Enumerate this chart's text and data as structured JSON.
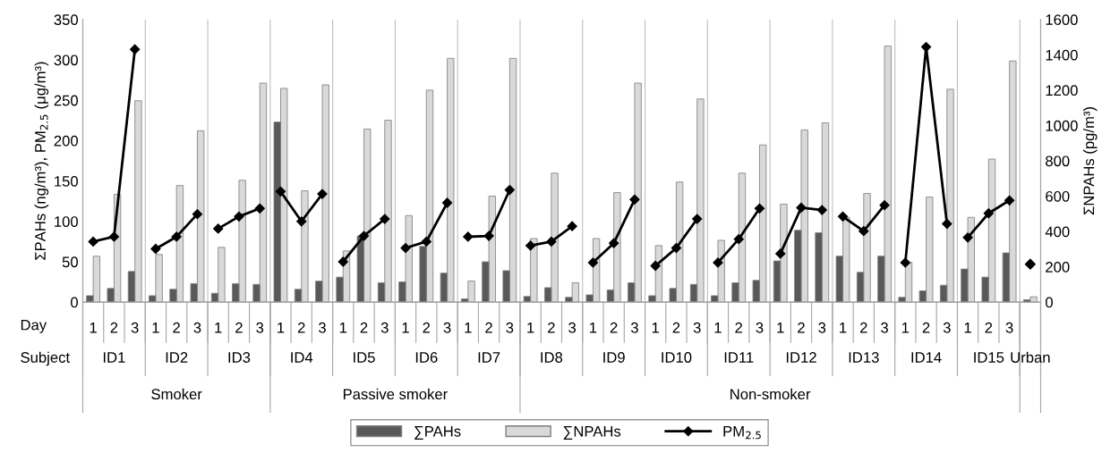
{
  "chart_data": {
    "type": "bar",
    "ylabel": "ΣPAHs (ng/m³), PM$_{2.5}$ (μg/m³)",
    "y2label": "ΣNPAHs (pg/m³)",
    "categories": [
      "1",
      "2",
      "3",
      "1",
      "2",
      "3",
      "1",
      "2",
      "3",
      "1",
      "2",
      "3",
      "1",
      "2",
      "3",
      "1",
      "2",
      "3",
      "1",
      "2",
      "3",
      "1",
      "2",
      "3",
      "1",
      "2",
      "3",
      "1",
      "2",
      "3",
      "1",
      "2",
      "3",
      "1",
      "2",
      "3",
      "1",
      "2",
      "3",
      "1",
      "2",
      "3",
      "1",
      "2",
      "3",
      null
    ],
    "series": [
      {
        "name": "∑PAHs",
        "color": "#595959",
        "values": [
          8,
          17,
          38,
          8,
          16,
          23,
          11,
          23,
          22,
          223,
          16,
          26,
          31,
          82,
          24,
          25,
          69,
          36,
          4,
          50,
          39,
          7,
          18,
          6,
          9,
          15,
          24,
          8,
          17,
          22,
          8,
          24,
          27,
          51,
          89,
          86,
          57,
          37,
          57,
          6,
          14,
          21,
          41,
          31,
          61,
          3
        ]
      },
      {
        "name": "∑NPAHs",
        "axis": "y2",
        "color": "#d9d9d9",
        "values": [
          260,
          610,
          1140,
          270,
          660,
          970,
          310,
          690,
          1240,
          1210,
          630,
          1230,
          290,
          980,
          1030,
          490,
          1200,
          1380,
          120,
          600,
          1380,
          360,
          730,
          110,
          360,
          620,
          1240,
          320,
          680,
          1150,
          350,
          730,
          890,
          555,
          975,
          1015,
          480,
          615,
          1450,
          225,
          595,
          1205,
          480,
          810,
          1365,
          30
        ]
      },
      {
        "name": "PM$_{2.5}$",
        "type": "line",
        "color": "#000000",
        "marker": "diamond",
        "values": [
          75,
          81,
          313,
          66,
          81,
          109,
          91,
          106,
          116,
          137,
          100,
          134,
          50,
          82,
          103,
          67,
          75,
          123,
          81,
          82,
          139,
          70,
          75,
          94,
          49,
          73,
          127,
          45,
          67,
          103,
          49,
          78,
          116,
          60,
          117,
          114,
          106,
          88,
          120,
          49,
          316,
          97,
          80,
          110,
          126,
          null
        ]
      },
      {
        "type": "scatter",
        "color": "#000000",
        "marker": "diamond",
        "values": [
          null,
          null,
          null,
          null,
          null,
          null,
          null,
          null,
          null,
          null,
          null,
          null,
          null,
          null,
          null,
          null,
          null,
          null,
          null,
          null,
          null,
          null,
          null,
          null,
          null,
          null,
          null,
          null,
          null,
          null,
          null,
          null,
          null,
          null,
          null,
          null,
          null,
          null,
          null,
          null,
          null,
          null,
          null,
          null,
          null,
          47
        ]
      }
    ],
    "ylim": [
      0,
      350
    ],
    "yticks": [
      0,
      50,
      100,
      150,
      200,
      250,
      300,
      350
    ],
    "y2lim": [
      0,
      1600
    ],
    "y2ticks": [
      0,
      200,
      400,
      600,
      800,
      1000,
      1200,
      1400,
      1600
    ],
    "annotations": [
      "Day",
      "Subject",
      "ID1",
      "ID2",
      "ID3",
      "ID4",
      "ID5",
      "ID6",
      "ID7",
      "ID8",
      "ID9",
      "ID10",
      "ID11",
      "ID12",
      "ID13",
      "ID14",
      "ID15",
      "Urban",
      "Smoker",
      "Passive smoker",
      "Non-smoker"
    ],
    "grid": false,
    "legend": "bottom"
  }
}
